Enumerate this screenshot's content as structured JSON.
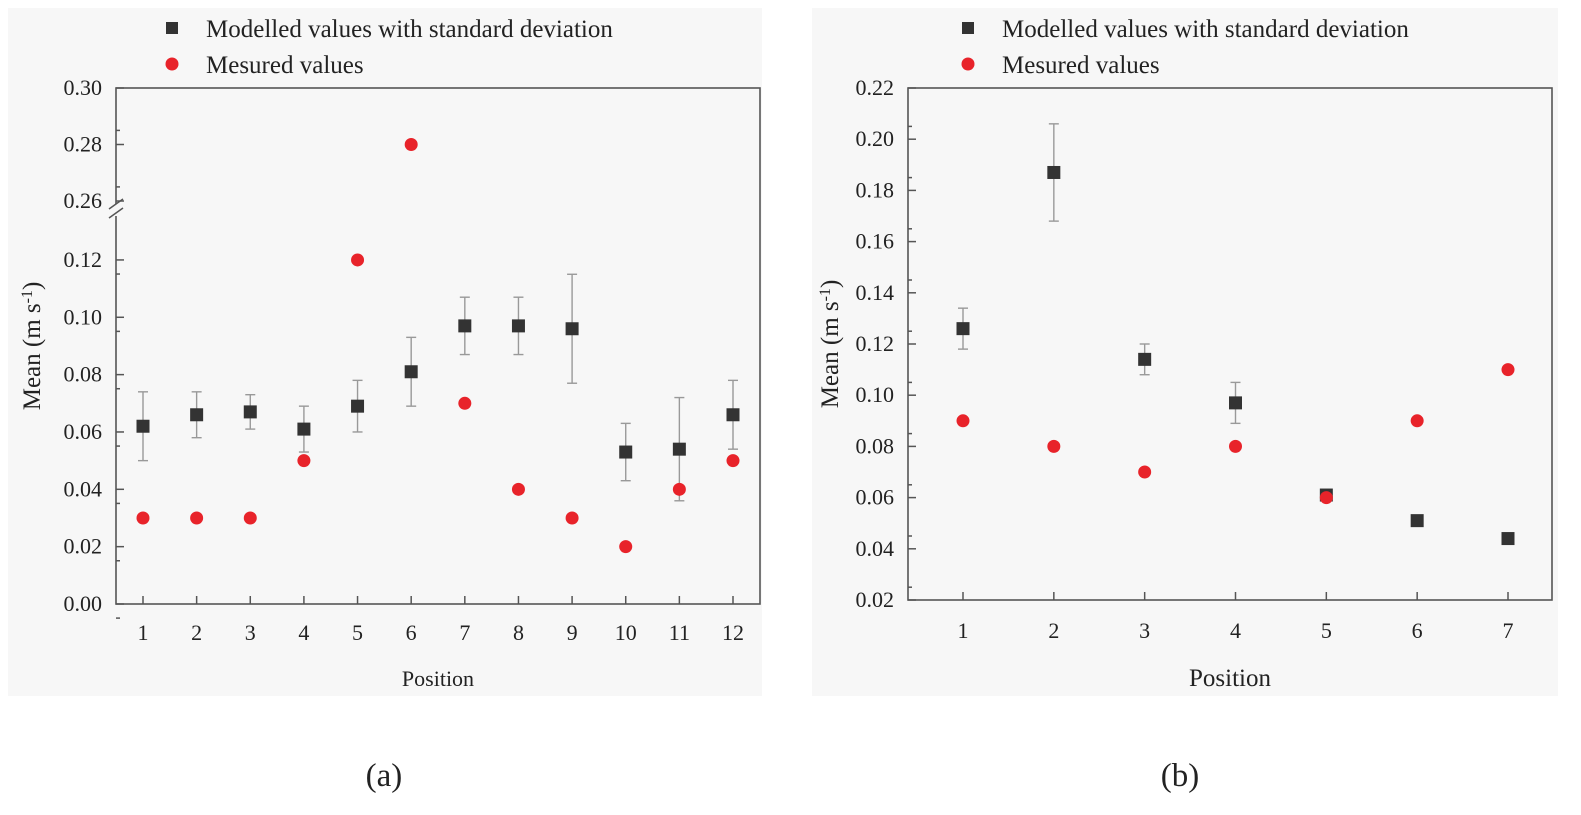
{
  "chart_data": [
    {
      "type": "scatter",
      "panel_label": "(a)",
      "xlabel": "Position",
      "ylabel": "Mean (m s",
      "ylabel_sup": "-1",
      "ylabel_close": ")",
      "x": [
        1,
        2,
        3,
        4,
        5,
        6,
        7,
        8,
        9,
        10,
        11,
        12
      ],
      "x_ticks": [
        "1",
        "2",
        "3",
        "4",
        "5",
        "6",
        "7",
        "8",
        "9",
        "10",
        "11",
        "12"
      ],
      "y_lower_ticks": [
        "0.00",
        "0.02",
        "0.04",
        "0.06",
        "0.08",
        "0.10",
        "0.12"
      ],
      "y_upper_ticks": [
        "0.26",
        "0.28",
        "0.30"
      ],
      "y_lower_range": [
        0,
        0.128
      ],
      "y_upper_range": [
        0.26,
        0.3
      ],
      "axis_break": true,
      "legend_position": "top",
      "series": [
        {
          "name": "Modelled values with standard deviation",
          "marker": "square",
          "color": "#333333",
          "values": [
            0.062,
            0.066,
            0.067,
            0.061,
            0.069,
            0.081,
            0.097,
            0.097,
            0.096,
            0.053,
            0.054,
            0.066
          ],
          "std": [
            0.012,
            0.008,
            0.006,
            0.008,
            0.009,
            0.012,
            0.01,
            0.01,
            0.019,
            0.01,
            0.018,
            0.012
          ]
        },
        {
          "name": "Mesured values",
          "marker": "circle",
          "color": "#e8232a",
          "values": [
            0.03,
            0.03,
            0.03,
            0.05,
            0.12,
            0.28,
            0.07,
            0.04,
            0.03,
            0.02,
            0.04,
            0.05
          ]
        }
      ]
    },
    {
      "type": "scatter",
      "panel_label": "(b)",
      "xlabel": "Position",
      "ylabel": "Mean (m s",
      "ylabel_sup": "-1",
      "ylabel_close": ")",
      "x": [
        1,
        2,
        3,
        4,
        5,
        6,
        7
      ],
      "x_ticks": [
        "1",
        "2",
        "3",
        "4",
        "5",
        "6",
        "7"
      ],
      "y_ticks": [
        "0.02",
        "0.04",
        "0.06",
        "0.08",
        "0.10",
        "0.12",
        "0.14",
        "0.16",
        "0.18",
        "0.20",
        "0.22"
      ],
      "ylim": [
        0.02,
        0.22
      ],
      "legend_position": "top",
      "series": [
        {
          "name": "Modelled values with standard deviation",
          "marker": "square",
          "color": "#333333",
          "values": [
            0.126,
            0.187,
            0.114,
            0.097,
            0.061,
            0.051,
            0.044
          ],
          "std": [
            0.008,
            0.019,
            0.006,
            0.008,
            0.001,
            0.002,
            0.001
          ]
        },
        {
          "name": "Mesured values",
          "marker": "circle",
          "color": "#e8232a",
          "values": [
            0.09,
            0.08,
            0.07,
            0.08,
            0.06,
            0.09,
            0.11
          ]
        }
      ]
    }
  ]
}
